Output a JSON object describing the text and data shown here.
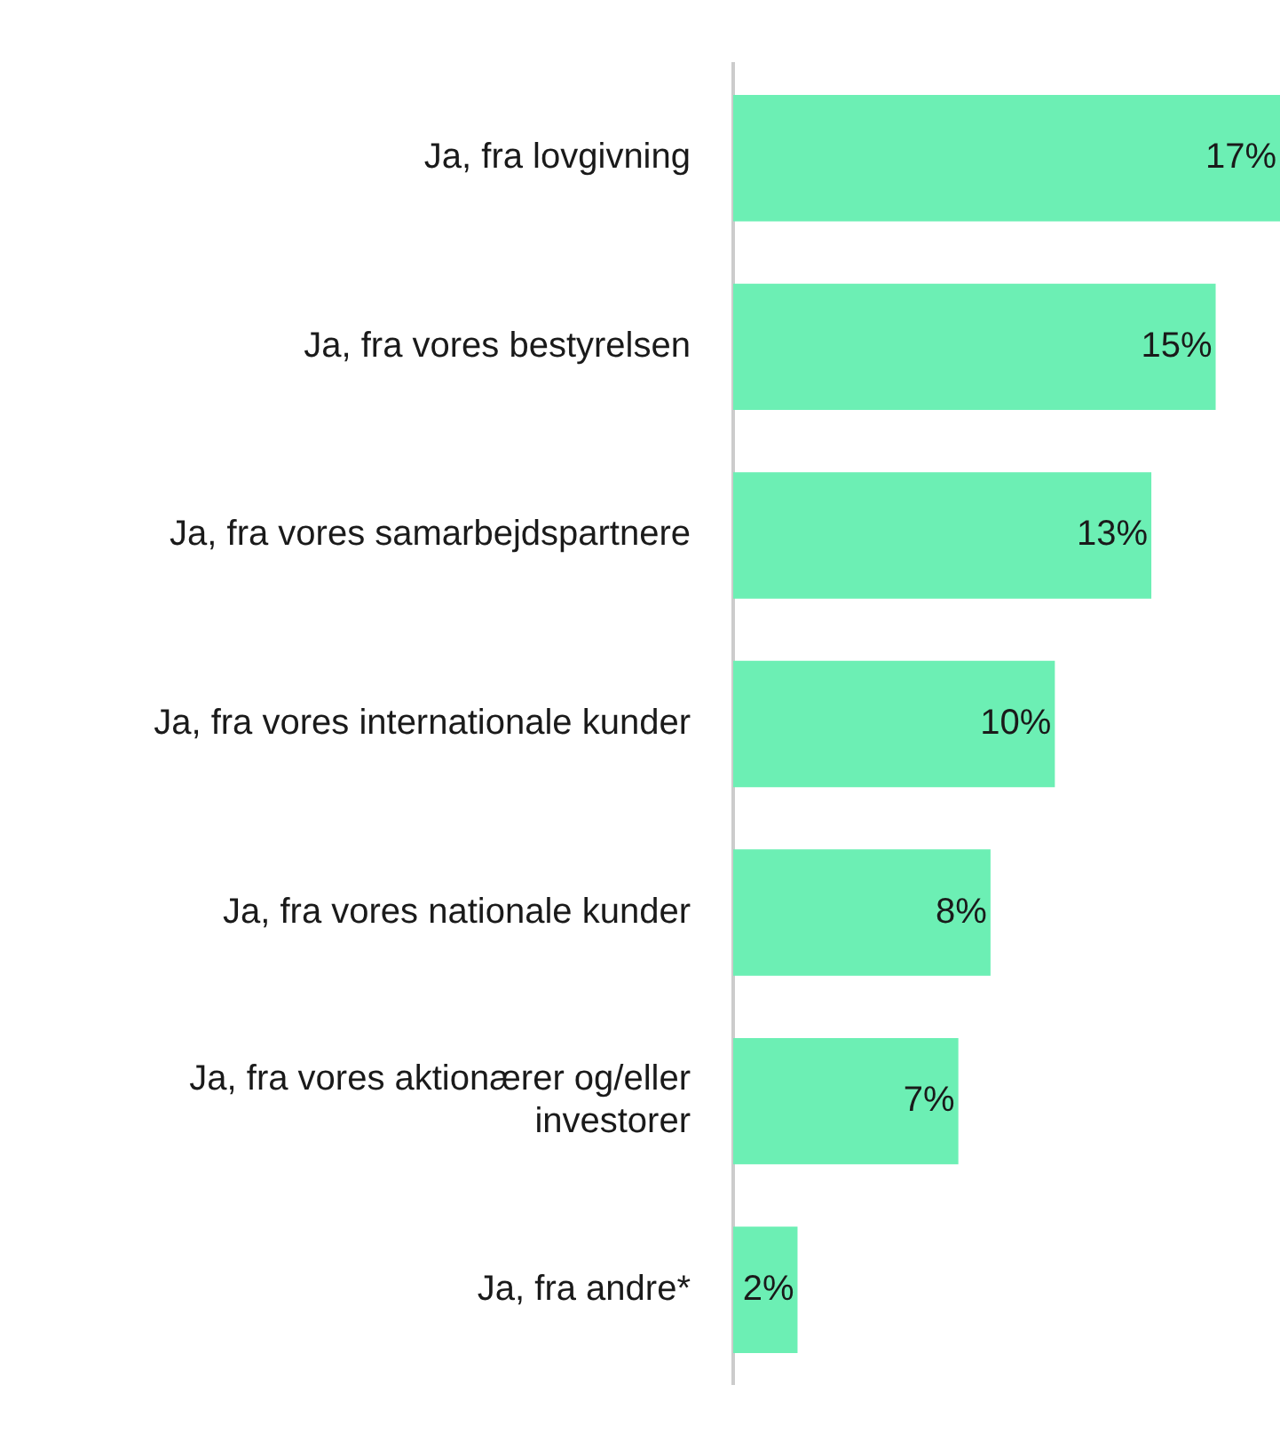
{
  "chart_data": {
    "type": "bar",
    "orientation": "horizontal",
    "categories": [
      "Ja, fra lovgivning",
      "Ja, fra vores bestyrelsen",
      "Ja, fra vores samarbejdspartnere",
      "Ja, fra vores internationale kunder",
      "Ja, fra vores nationale kunder",
      "Ja, fra vores aktionærer og/eller investorer",
      "Ja, fra andre*"
    ],
    "values": [
      17,
      15,
      13,
      10,
      8,
      7,
      2
    ],
    "value_labels": [
      "17%",
      "15%",
      "13%",
      "10%",
      "8%",
      "7%",
      "2%"
    ],
    "color": "#6cefb4",
    "xlim": [
      0,
      17
    ],
    "grid": false,
    "tick_labels": "y"
  }
}
